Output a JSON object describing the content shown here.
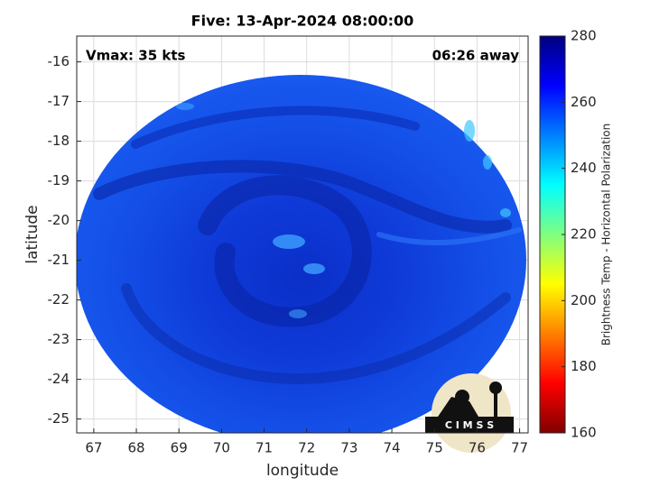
{
  "chart_data": {
    "type": "image",
    "title": "Five: 13-Apr-2024 08:00:00",
    "annotations": [
      "Vmax: 35 kts",
      "06:26 away"
    ],
    "xlabel": "longitude",
    "ylabel": "latitude",
    "xlim": [
      66.6,
      77.2
    ],
    "ylim": [
      -25.35,
      -15.35
    ],
    "xticks": [
      67,
      68,
      69,
      70,
      71,
      72,
      73,
      74,
      75,
      76,
      77
    ],
    "yticks": [
      -25,
      -24,
      -23,
      -22,
      -21,
      -20,
      -19,
      -18,
      -17,
      -16
    ],
    "grid": true,
    "colorbar": {
      "label": "Brightness Temp - Horizontal Polarization",
      "clim": [
        160,
        280
      ],
      "ticks": [
        160,
        180,
        200,
        220,
        240,
        260,
        280
      ],
      "colormap": "jet"
    },
    "logo": "C I M S S"
  }
}
